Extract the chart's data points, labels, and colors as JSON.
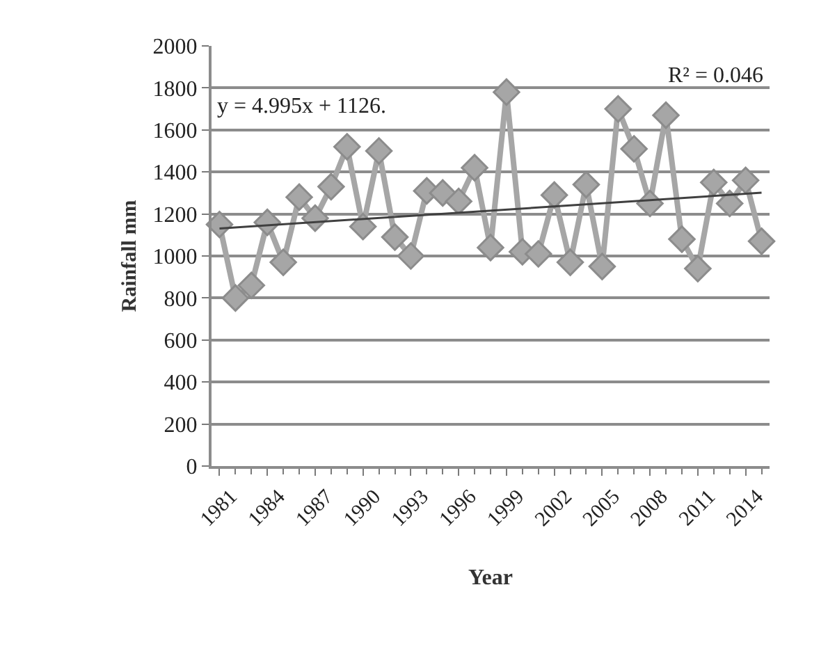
{
  "chart_data": {
    "type": "line",
    "xlabel": "Year",
    "ylabel": "Rainfall mm",
    "x": [
      1981,
      1982,
      1983,
      1984,
      1985,
      1986,
      1987,
      1988,
      1989,
      1990,
      1991,
      1992,
      1993,
      1994,
      1995,
      1996,
      1997,
      1998,
      1999,
      2000,
      2001,
      2002,
      2003,
      2004,
      2005,
      2006,
      2007,
      2008,
      2009,
      2010,
      2011,
      2012,
      2013,
      2014,
      2015
    ],
    "xlim": [
      1980.5,
      2015.5
    ],
    "xticks": [
      1981,
      1984,
      1987,
      1990,
      1993,
      1996,
      1999,
      2002,
      2005,
      2008,
      2011,
      2014
    ],
    "ylim": [
      0,
      2000
    ],
    "yticks": [
      0,
      200,
      400,
      600,
      800,
      1000,
      1200,
      1400,
      1600,
      1800,
      2000
    ],
    "grid": "y",
    "marker": "diamond",
    "annotations": [
      "y = 4.995x + 1126.",
      "R² = 0.046"
    ],
    "series": [
      {
        "color": "#a6a6a6",
        "values": [
          1150,
          800,
          860,
          1160,
          970,
          1280,
          1180,
          1330,
          1520,
          1140,
          1500,
          1090,
          1000,
          1310,
          1300,
          1260,
          1420,
          1040,
          1780,
          1020,
          1010,
          1290,
          970,
          1340,
          950,
          1700,
          1510,
          1250,
          1670,
          1080,
          940,
          1350,
          1250,
          1360,
          1070
        ]
      },
      {
        "type": "line",
        "color": "#404040",
        "marker": "none",
        "x": [
          1981,
          2015
        ],
        "values": [
          1131,
          1301
        ]
      }
    ]
  }
}
